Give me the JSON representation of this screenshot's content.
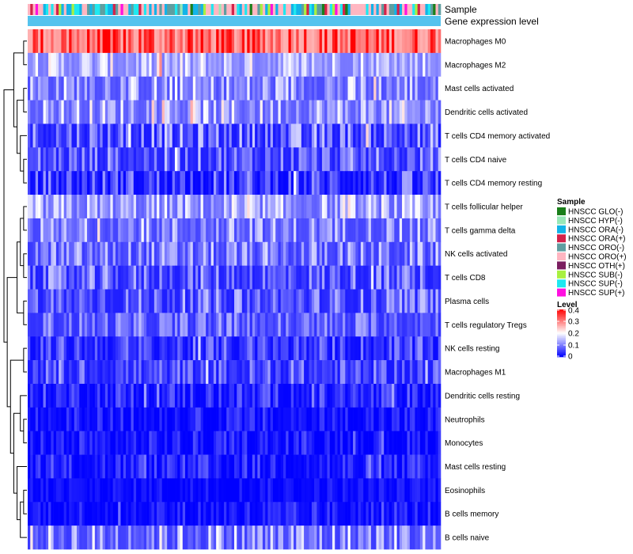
{
  "chart_data": {
    "type": "heatmap",
    "title": "",
    "annotation_tracks": [
      "Sample",
      "Gene expression level"
    ],
    "rows": [
      {
        "label": "Macrophages M0",
        "mean": 0.3,
        "spread": 0.09
      },
      {
        "label": "Macrophages M2",
        "mean": 0.12,
        "spread": 0.06
      },
      {
        "label": "Mast cells activated",
        "mean": 0.09,
        "spread": 0.07
      },
      {
        "label": "Dendritic cells activated",
        "mean": 0.1,
        "spread": 0.07
      },
      {
        "label": "T cells CD4 memory activated",
        "mean": 0.05,
        "spread": 0.07
      },
      {
        "label": "T cells CD4 naive",
        "mean": 0.05,
        "spread": 0.06
      },
      {
        "label": "T cells CD4 memory resting",
        "mean": 0.03,
        "spread": 0.06
      },
      {
        "label": "T cells follicular helper",
        "mean": 0.1,
        "spread": 0.06
      },
      {
        "label": "T cells gamma delta",
        "mean": 0.08,
        "spread": 0.06
      },
      {
        "label": "NK cells activated",
        "mean": 0.07,
        "spread": 0.06
      },
      {
        "label": "T cells CD8",
        "mean": 0.05,
        "spread": 0.06
      },
      {
        "label": "Plasma cells",
        "mean": 0.05,
        "spread": 0.06
      },
      {
        "label": "T cells regulatory  Tregs",
        "mean": 0.06,
        "spread": 0.05
      },
      {
        "label": "NK cells resting",
        "mean": 0.03,
        "spread": 0.05
      },
      {
        "label": "Macrophages M1",
        "mean": 0.04,
        "spread": 0.05
      },
      {
        "label": "Dendritic cells resting",
        "mean": 0.02,
        "spread": 0.04
      },
      {
        "label": "Neutrophils",
        "mean": 0.01,
        "spread": 0.03
      },
      {
        "label": "Monocytes",
        "mean": 0.01,
        "spread": 0.03
      },
      {
        "label": "Mast cells resting",
        "mean": 0.015,
        "spread": 0.035
      },
      {
        "label": "Eosinophils",
        "mean": 0.005,
        "spread": 0.02
      },
      {
        "label": "B cells memory",
        "mean": 0.01,
        "spread": 0.03
      },
      {
        "label": "B cells naive",
        "mean": 0.08,
        "spread": 0.08
      }
    ],
    "n_samples": 160,
    "sample_groups": [
      {
        "name": "HNSCC GLO(-)",
        "color": "#1A7F1A"
      },
      {
        "name": "HNSCC HYP(-)",
        "color": "#98E8B8"
      },
      {
        "name": "HNSCC ORA(-)",
        "color": "#12B4E8"
      },
      {
        "name": "HNSCC ORA(+)",
        "color": "#D4224A"
      },
      {
        "name": "HNSCC ORO(-)",
        "color": "#5F9EA0"
      },
      {
        "name": "HNSCC ORO(+)",
        "color": "#FFB6C1"
      },
      {
        "name": "HNSCC OTH(+)",
        "color": "#7B1E60"
      },
      {
        "name": "HNSCC SUB(-)",
        "color": "#A8F040"
      },
      {
        "name": "HNSCC SUP(-)",
        "color": "#1EE8F0"
      },
      {
        "name": "HNSCC SUP(+)",
        "color": "#FF10E0"
      }
    ],
    "gene_expression_level_color": "#55C3EE",
    "color_scale": {
      "title": "Level",
      "min": 0,
      "max": 0.4,
      "ticks": [
        0.4,
        0.3,
        0.2,
        0.1,
        0
      ],
      "tick_labels": [
        "0.4",
        "0.3",
        "0.2",
        "0.1",
        "0"
      ],
      "low_color": "#0000FF",
      "mid_color": "#FFFFFF",
      "high_color": "#FF0000",
      "mid_value": 0.2
    },
    "legend_sample_title": "Sample",
    "legend_level_title": "Level"
  }
}
